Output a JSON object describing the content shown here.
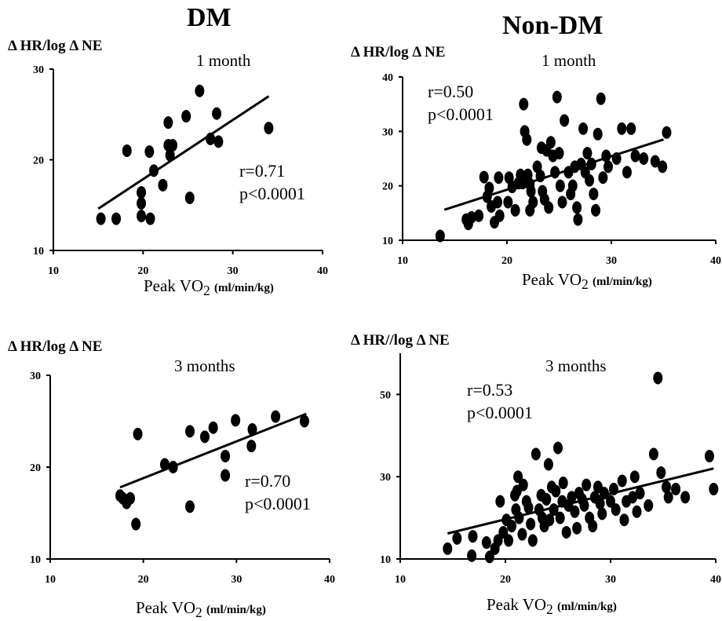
{
  "columns": {
    "left": "DM",
    "right": "Non-DM"
  },
  "chart_data": [
    {
      "type": "scatter",
      "title": "1 month",
      "ylabel": "Δ HR/log Δ NE",
      "xlabel_main": "Peak VO",
      "xlabel_sub": "2",
      "xlabel_unit": "(ml/min/kg)",
      "xlim": [
        10,
        40
      ],
      "ylim": [
        10,
        30
      ],
      "xticks": [
        "10",
        "20",
        "30",
        "40"
      ],
      "yticks": [
        "10",
        "20",
        "30"
      ],
      "stats": {
        "r": "r=0.71",
        "p": "p<0.0001"
      },
      "fit_line": [
        [
          15,
          14.6
        ],
        [
          34,
          27
        ]
      ],
      "points": [
        [
          15.3,
          13.5
        ],
        [
          17,
          13.5
        ],
        [
          18.2,
          21
        ],
        [
          19.8,
          13.8
        ],
        [
          19.8,
          15.2
        ],
        [
          19.8,
          16.4
        ],
        [
          20.7,
          20.9
        ],
        [
          20.8,
          13.5
        ],
        [
          21.2,
          18.8
        ],
        [
          22.2,
          17.2
        ],
        [
          22.8,
          24.1
        ],
        [
          22.8,
          21.6
        ],
        [
          23.3,
          21.6
        ],
        [
          23,
          20.5
        ],
        [
          24.8,
          24.8
        ],
        [
          25.2,
          15.8
        ],
        [
          26.3,
          27.6
        ],
        [
          27.5,
          22.3
        ],
        [
          28.2,
          25.1
        ],
        [
          28.4,
          22
        ],
        [
          34,
          23.5
        ]
      ]
    },
    {
      "type": "scatter",
      "title": "1 month",
      "ylabel": "Δ HR/log Δ NE",
      "xlabel_main": "Peak VO",
      "xlabel_sub": "2",
      "xlabel_unit": "(ml/min/kg)",
      "xlim": [
        10,
        40
      ],
      "ylim": [
        10,
        40
      ],
      "xticks": [
        "10",
        "20",
        "30",
        "40"
      ],
      "yticks": [
        "10",
        "20",
        "30",
        "40"
      ],
      "stats": {
        "r": "r=0.50",
        "p": "p<0.0001"
      },
      "fit_line": [
        [
          14,
          15.6
        ],
        [
          35,
          28.5
        ]
      ],
      "points": [
        [
          13.6,
          10.8
        ],
        [
          16.1,
          13.8
        ],
        [
          16.6,
          14.2
        ],
        [
          16.3,
          13
        ],
        [
          17.3,
          14.5
        ],
        [
          17.8,
          21.6
        ],
        [
          18.3,
          19.6
        ],
        [
          18.1,
          18
        ],
        [
          18.5,
          16.2
        ],
        [
          18.8,
          13.3
        ],
        [
          19.2,
          21.5
        ],
        [
          19.1,
          17
        ],
        [
          19.3,
          14.5
        ],
        [
          20.2,
          21.5
        ],
        [
          20.5,
          19.8
        ],
        [
          20.1,
          17
        ],
        [
          20.8,
          15.5
        ],
        [
          21.1,
          20.5
        ],
        [
          21.3,
          22
        ],
        [
          21.5,
          20.5
        ],
        [
          21.6,
          35
        ],
        [
          21.7,
          30
        ],
        [
          21.9,
          28.5
        ],
        [
          22,
          22
        ],
        [
          22.2,
          20.3
        ],
        [
          22.3,
          19
        ],
        [
          22.5,
          17
        ],
        [
          22.2,
          15.5
        ],
        [
          22.9,
          23.5
        ],
        [
          23.2,
          21.8
        ],
        [
          23.3,
          27
        ],
        [
          23.4,
          19
        ],
        [
          23.6,
          17.5
        ],
        [
          23.8,
          26.5
        ],
        [
          24,
          16
        ],
        [
          24.2,
          28
        ],
        [
          24.4,
          25.5
        ],
        [
          24.6,
          22.5
        ],
        [
          24.8,
          36.3
        ],
        [
          25,
          26
        ],
        [
          25.1,
          20
        ],
        [
          25.3,
          17
        ],
        [
          25.5,
          32
        ],
        [
          25.9,
          22.5
        ],
        [
          26.1,
          18.5
        ],
        [
          26.3,
          20
        ],
        [
          26.5,
          23.5
        ],
        [
          26.7,
          16
        ],
        [
          26.8,
          13.8
        ],
        [
          27.1,
          24
        ],
        [
          27.3,
          30.5
        ],
        [
          27.5,
          22.5
        ],
        [
          27.7,
          26
        ],
        [
          27.9,
          21
        ],
        [
          28.1,
          24
        ],
        [
          28.3,
          18.5
        ],
        [
          28.5,
          15.5
        ],
        [
          28.7,
          29.5
        ],
        [
          29,
          36
        ],
        [
          29.2,
          21.5
        ],
        [
          29.5,
          25.5
        ],
        [
          29.7,
          23.5
        ],
        [
          30.5,
          25
        ],
        [
          31,
          30.5
        ],
        [
          31.5,
          22.5
        ],
        [
          31.9,
          30.5
        ],
        [
          32.3,
          25.5
        ],
        [
          33.1,
          25
        ],
        [
          34.2,
          24.5
        ],
        [
          34.9,
          23.5
        ],
        [
          35.3,
          29.8
        ]
      ]
    },
    {
      "type": "scatter",
      "title": "3 months",
      "ylabel": "Δ HR/log Δ NE",
      "xlabel_main": "Peak VO",
      "xlabel_sub": "2",
      "xlabel_unit": "(ml/min/kg)",
      "xlim": [
        10,
        40
      ],
      "ylim": [
        10,
        30
      ],
      "xticks": [
        "10",
        "20",
        "30",
        "40"
      ],
      "yticks": [
        "10",
        "20",
        "30"
      ],
      "stats": {
        "r": "r=0.70",
        "p": "p<0.0001"
      },
      "fit_line": [
        [
          17.5,
          17.8
        ],
        [
          37.5,
          25.8
        ]
      ],
      "points": [
        [
          17.5,
          16.9
        ],
        [
          17.8,
          16.6
        ],
        [
          18.2,
          16.1
        ],
        [
          18.6,
          16.6
        ],
        [
          19.2,
          13.8
        ],
        [
          19.4,
          23.6
        ],
        [
          22.3,
          20.3
        ],
        [
          23.2,
          20
        ],
        [
          25,
          15.7
        ],
        [
          25,
          23.9
        ],
        [
          26.6,
          23.3
        ],
        [
          27.5,
          24.3
        ],
        [
          28.8,
          21.2
        ],
        [
          28.8,
          19.1
        ],
        [
          29.9,
          25.1
        ],
        [
          31.6,
          22.3
        ],
        [
          31.7,
          24.1
        ],
        [
          34.2,
          25.5
        ],
        [
          37.3,
          25
        ]
      ]
    },
    {
      "type": "scatter",
      "title": "3 months",
      "ylabel": "Δ HR//log Δ NE",
      "xlabel_main": "Peak VO",
      "xlabel_sub": "2",
      "xlabel_unit": "(ml/min/kg)",
      "xlim": [
        10,
        40
      ],
      "ylim": [
        10,
        60
      ],
      "xticks": [
        "10",
        "20",
        "30",
        "40"
      ],
      "yticks": [
        "10",
        "30",
        "50"
      ],
      "stats": {
        "r": "r=0.53",
        "p": "p<0.0001"
      },
      "fit_line": [
        [
          14.5,
          16.2
        ],
        [
          39.8,
          32
        ]
      ],
      "points": [
        [
          14.5,
          12.5
        ],
        [
          15.4,
          15
        ],
        [
          16.8,
          10.8
        ],
        [
          16.9,
          15.5
        ],
        [
          18.2,
          14
        ],
        [
          18.5,
          10.5
        ],
        [
          19,
          12.5
        ],
        [
          19.3,
          14.5
        ],
        [
          19.5,
          24
        ],
        [
          19.8,
          16.5
        ],
        [
          20.1,
          19.5
        ],
        [
          20.3,
          14.5
        ],
        [
          20.6,
          18
        ],
        [
          20.9,
          25.5
        ],
        [
          21,
          22
        ],
        [
          21.1,
          26.5
        ],
        [
          21.2,
          30
        ],
        [
          21.3,
          20
        ],
        [
          21.6,
          16
        ],
        [
          21.7,
          28
        ],
        [
          22,
          24
        ],
        [
          22.2,
          22.5
        ],
        [
          22.4,
          18.5
        ],
        [
          22.6,
          14.5
        ],
        [
          22.9,
          35.5
        ],
        [
          23.2,
          22
        ],
        [
          23.4,
          25.5
        ],
        [
          23.5,
          20
        ],
        [
          23.7,
          18
        ],
        [
          23.9,
          24.5
        ],
        [
          24.1,
          33
        ],
        [
          24.2,
          19.5
        ],
        [
          24.4,
          27.5
        ],
        [
          24.6,
          22
        ],
        [
          24.8,
          26.5
        ],
        [
          25,
          37
        ],
        [
          25.2,
          20
        ],
        [
          25.4,
          24
        ],
        [
          25.5,
          28.5
        ],
        [
          25.8,
          16.5
        ],
        [
          26,
          23
        ],
        [
          26.3,
          25
        ],
        [
          26.6,
          21.5
        ],
        [
          26.8,
          17.5
        ],
        [
          27,
          26
        ],
        [
          27.3,
          24.5
        ],
        [
          27.5,
          23
        ],
        [
          27.7,
          28
        ],
        [
          28,
          20
        ],
        [
          28.3,
          18
        ],
        [
          28.5,
          25
        ],
        [
          28.8,
          27.5
        ],
        [
          29,
          23.5
        ],
        [
          29.2,
          21
        ],
        [
          29.4,
          26
        ],
        [
          30,
          24
        ],
        [
          30.3,
          27
        ],
        [
          30.5,
          22
        ],
        [
          31.1,
          29
        ],
        [
          31.3,
          19.5
        ],
        [
          31.5,
          24
        ],
        [
          32.1,
          25
        ],
        [
          32.3,
          30
        ],
        [
          32.5,
          21.5
        ],
        [
          32.8,
          26
        ],
        [
          33.6,
          23
        ],
        [
          34.1,
          35.5
        ],
        [
          34.5,
          54
        ],
        [
          34.8,
          31
        ],
        [
          35.3,
          27.5
        ],
        [
          35.5,
          25
        ],
        [
          36.2,
          27
        ],
        [
          37.1,
          25
        ],
        [
          39.4,
          35
        ],
        [
          39.8,
          27
        ]
      ]
    }
  ]
}
